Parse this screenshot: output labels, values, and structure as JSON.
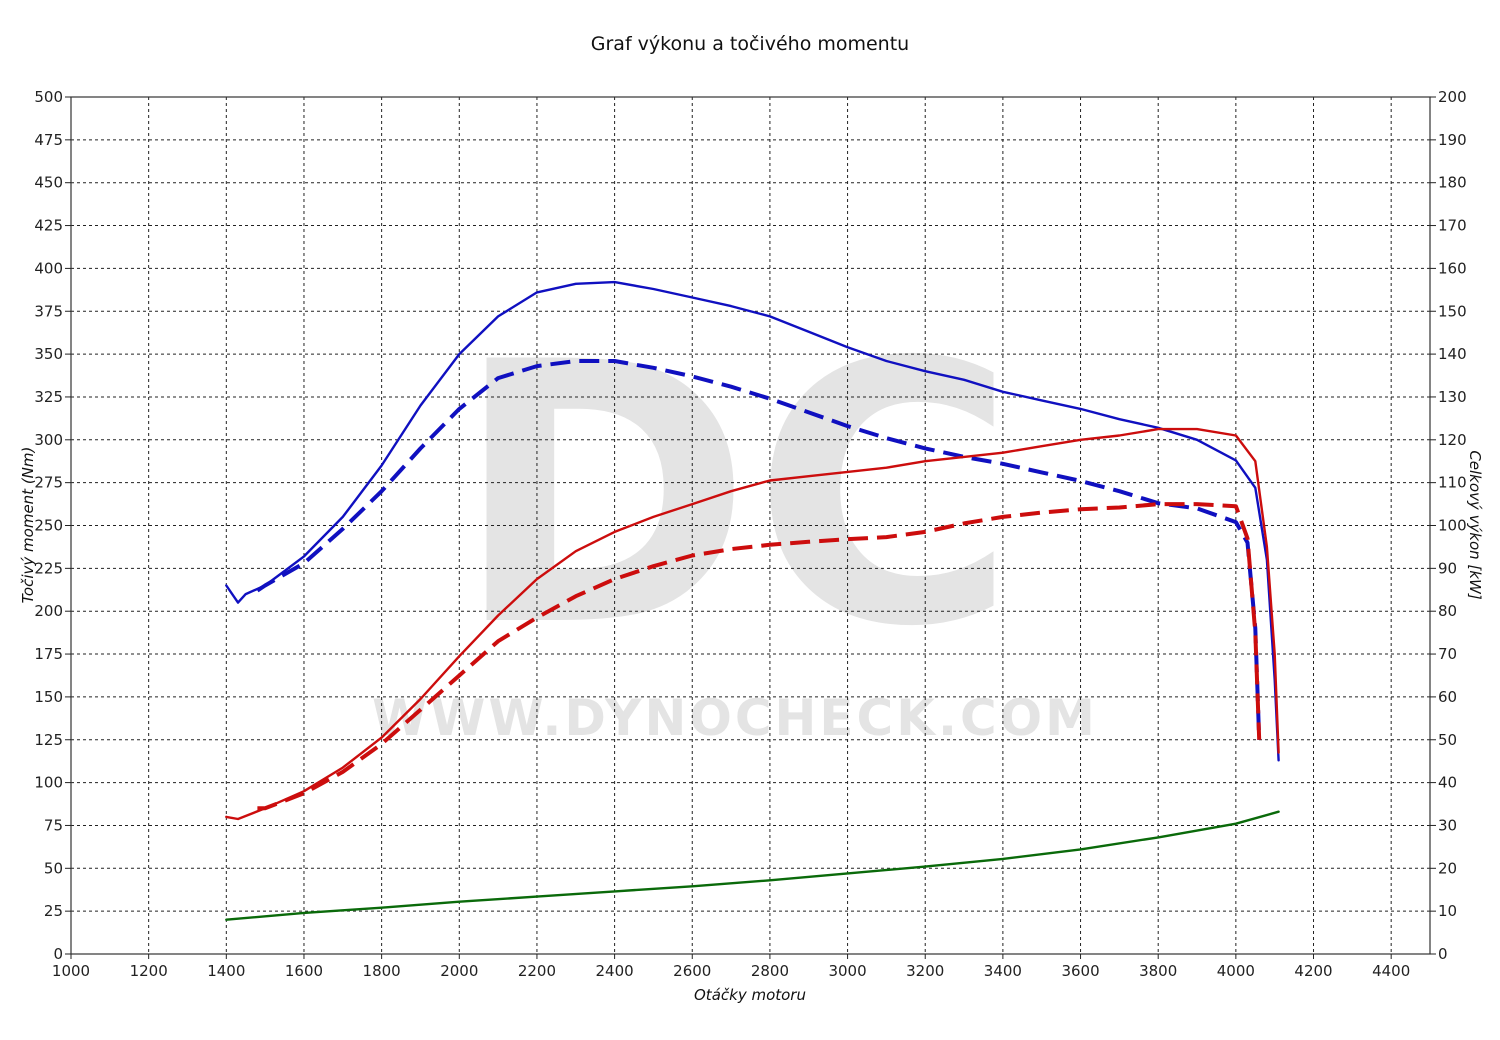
{
  "chart_data": {
    "type": "line",
    "title": "Graf výkonu a točivého momentu",
    "xlabel": "Otáčky motoru",
    "ylabel_left": "Točivý moment (Nm)",
    "ylabel_right": "Celkový výkon [kW]",
    "xlim": [
      1000,
      4500
    ],
    "ylim_left": [
      0,
      500
    ],
    "ylim_right": [
      0,
      200
    ],
    "x_ticks": [
      "1000",
      "1200",
      "1400",
      "1600",
      "1800",
      "2000",
      "2200",
      "2400",
      "2600",
      "2800",
      "3000",
      "3200",
      "3400",
      "3600",
      "3800",
      "4000",
      "4200",
      "4400"
    ],
    "y_left_ticks": [
      "0",
      "25",
      "50",
      "75",
      "100",
      "125",
      "150",
      "175",
      "200",
      "225",
      "250",
      "275",
      "300",
      "325",
      "350",
      "375",
      "400",
      "425",
      "450",
      "475",
      "500"
    ],
    "y_right_ticks": [
      "0",
      "10",
      "20",
      "30",
      "40",
      "50",
      "60",
      "70",
      "80",
      "90",
      "100",
      "110",
      "120",
      "130",
      "140",
      "150",
      "160",
      "170",
      "180",
      "190",
      "200"
    ],
    "grid": true,
    "watermark": {
      "logo": "DC",
      "url": "WWW.DYNOCHECK.COM"
    },
    "series": [
      {
        "axis": "left",
        "color": "#1010c0",
        "style": "solid",
        "points": [
          [
            1400,
            215
          ],
          [
            1430,
            205
          ],
          [
            1450,
            210
          ],
          [
            1500,
            215
          ],
          [
            1600,
            232
          ],
          [
            1700,
            255
          ],
          [
            1800,
            285
          ],
          [
            1900,
            320
          ],
          [
            2000,
            350
          ],
          [
            2100,
            372
          ],
          [
            2200,
            386
          ],
          [
            2300,
            391
          ],
          [
            2400,
            392
          ],
          [
            2500,
            388
          ],
          [
            2600,
            383
          ],
          [
            2700,
            378
          ],
          [
            2800,
            372
          ],
          [
            2900,
            363
          ],
          [
            3000,
            354
          ],
          [
            3100,
            346
          ],
          [
            3200,
            340
          ],
          [
            3300,
            335
          ],
          [
            3400,
            328
          ],
          [
            3500,
            323
          ],
          [
            3600,
            318
          ],
          [
            3700,
            312
          ],
          [
            3800,
            307
          ],
          [
            3900,
            300
          ],
          [
            4000,
            288
          ],
          [
            4050,
            272
          ],
          [
            4080,
            230
          ],
          [
            4100,
            160
          ],
          [
            4110,
            113
          ]
        ]
      },
      {
        "axis": "left",
        "color": "#1010c0",
        "style": "dashed",
        "points": [
          [
            1480,
            212
          ],
          [
            1500,
            215
          ],
          [
            1600,
            228
          ],
          [
            1700,
            248
          ],
          [
            1800,
            270
          ],
          [
            1900,
            295
          ],
          [
            2000,
            318
          ],
          [
            2100,
            336
          ],
          [
            2200,
            343
          ],
          [
            2300,
            346
          ],
          [
            2400,
            346
          ],
          [
            2500,
            342
          ],
          [
            2600,
            337
          ],
          [
            2700,
            331
          ],
          [
            2800,
            324
          ],
          [
            2900,
            316
          ],
          [
            3000,
            308
          ],
          [
            3100,
            301
          ],
          [
            3200,
            295
          ],
          [
            3300,
            290
          ],
          [
            3400,
            286
          ],
          [
            3500,
            281
          ],
          [
            3600,
            276
          ],
          [
            3700,
            270
          ],
          [
            3800,
            263
          ],
          [
            3900,
            260
          ],
          [
            4000,
            252
          ],
          [
            4030,
            240
          ],
          [
            4050,
            190
          ],
          [
            4060,
            125
          ]
        ]
      },
      {
        "axis": "right",
        "color": "#cc0d0d",
        "style": "solid",
        "points": [
          [
            1400,
            32
          ],
          [
            1430,
            31.5
          ],
          [
            1500,
            34
          ],
          [
            1600,
            38
          ],
          [
            1700,
            43.5
          ],
          [
            1800,
            50.5
          ],
          [
            1900,
            59.5
          ],
          [
            2000,
            69.5
          ],
          [
            2100,
            79
          ],
          [
            2200,
            87.5
          ],
          [
            2300,
            94
          ],
          [
            2400,
            98.5
          ],
          [
            2500,
            102
          ],
          [
            2600,
            105
          ],
          [
            2700,
            108
          ],
          [
            2800,
            110.5
          ],
          [
            2900,
            111.5
          ],
          [
            3000,
            112.5
          ],
          [
            3100,
            113.5
          ],
          [
            3200,
            115
          ],
          [
            3300,
            116
          ],
          [
            3400,
            117
          ],
          [
            3500,
            118.5
          ],
          [
            3600,
            120
          ],
          [
            3700,
            121
          ],
          [
            3800,
            122.5
          ],
          [
            3900,
            122.5
          ],
          [
            4000,
            121
          ],
          [
            4050,
            115
          ],
          [
            4080,
            95
          ],
          [
            4100,
            70
          ],
          [
            4110,
            47
          ]
        ]
      },
      {
        "axis": "right",
        "color": "#cc0d0d",
        "style": "dashed",
        "points": [
          [
            1480,
            34
          ],
          [
            1500,
            34
          ],
          [
            1600,
            37.5
          ],
          [
            1700,
            42.5
          ],
          [
            1800,
            49
          ],
          [
            1900,
            57
          ],
          [
            2000,
            65
          ],
          [
            2100,
            73
          ],
          [
            2200,
            78.5
          ],
          [
            2300,
            83.5
          ],
          [
            2400,
            87.5
          ],
          [
            2500,
            90.5
          ],
          [
            2600,
            93
          ],
          [
            2700,
            94.5
          ],
          [
            2800,
            95.5
          ],
          [
            2900,
            96.2
          ],
          [
            3000,
            96.8
          ],
          [
            3100,
            97.3
          ],
          [
            3200,
            98.5
          ],
          [
            3300,
            100.5
          ],
          [
            3400,
            102
          ],
          [
            3500,
            103
          ],
          [
            3600,
            103.8
          ],
          [
            3700,
            104.2
          ],
          [
            3800,
            105
          ],
          [
            3900,
            105
          ],
          [
            4000,
            104.5
          ],
          [
            4030,
            97
          ],
          [
            4050,
            75
          ],
          [
            4060,
            50
          ]
        ]
      },
      {
        "axis": "left",
        "color": "#0a6a0a",
        "style": "solid",
        "points": [
          [
            1400,
            20
          ],
          [
            1600,
            24
          ],
          [
            1800,
            27
          ],
          [
            2000,
            30.5
          ],
          [
            2200,
            33.5
          ],
          [
            2400,
            36.5
          ],
          [
            2600,
            39.5
          ],
          [
            2800,
            43
          ],
          [
            3000,
            47
          ],
          [
            3200,
            51
          ],
          [
            3400,
            55.5
          ],
          [
            3600,
            61
          ],
          [
            3800,
            68
          ],
          [
            4000,
            76
          ],
          [
            4110,
            83
          ]
        ]
      }
    ]
  }
}
